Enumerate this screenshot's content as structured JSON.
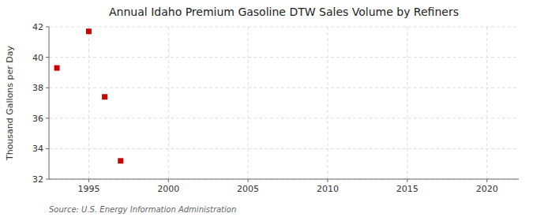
{
  "chart_data": {
    "type": "scatter",
    "title": "Annual Idaho Premium Gasoline DTW Sales Volume by Refiners",
    "ylabel": "Thousand Gallons per Day",
    "annotation": "Source: U.S. Energy Information Administration",
    "x": [
      1993,
      1995,
      1996,
      1997
    ],
    "values": [
      39.3,
      41.7,
      37.4,
      33.2
    ],
    "color": "#cc0000",
    "marker": "square",
    "xlim": [
      1992.5,
      2022
    ],
    "ylim": [
      32,
      42
    ],
    "xticks": [
      1995,
      2000,
      2005,
      2010,
      2015,
      2020
    ],
    "yticks": [
      32,
      34,
      36,
      38,
      40,
      42
    ],
    "grid": true
  }
}
